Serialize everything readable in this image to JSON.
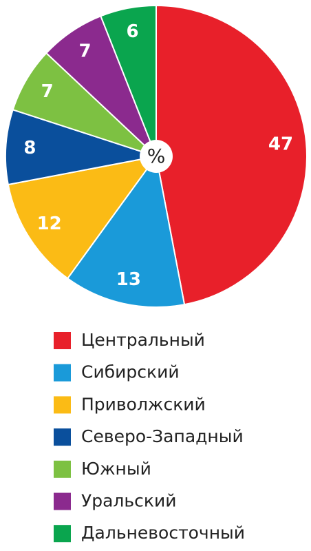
{
  "chart_data": {
    "type": "pie",
    "center_label": "%",
    "categories": [
      "Центральный",
      "Сибирский",
      "Приволжский",
      "Северо-Западный",
      "Южный",
      "Уральский",
      "Дальневосточный"
    ],
    "values": [
      47,
      13,
      12,
      8,
      7,
      7,
      6
    ],
    "colors": [
      "#e8202a",
      "#1a9ad9",
      "#fbbb15",
      "#0a4f9c",
      "#7dc142",
      "#8b2a8e",
      "#0aa54e"
    ]
  }
}
